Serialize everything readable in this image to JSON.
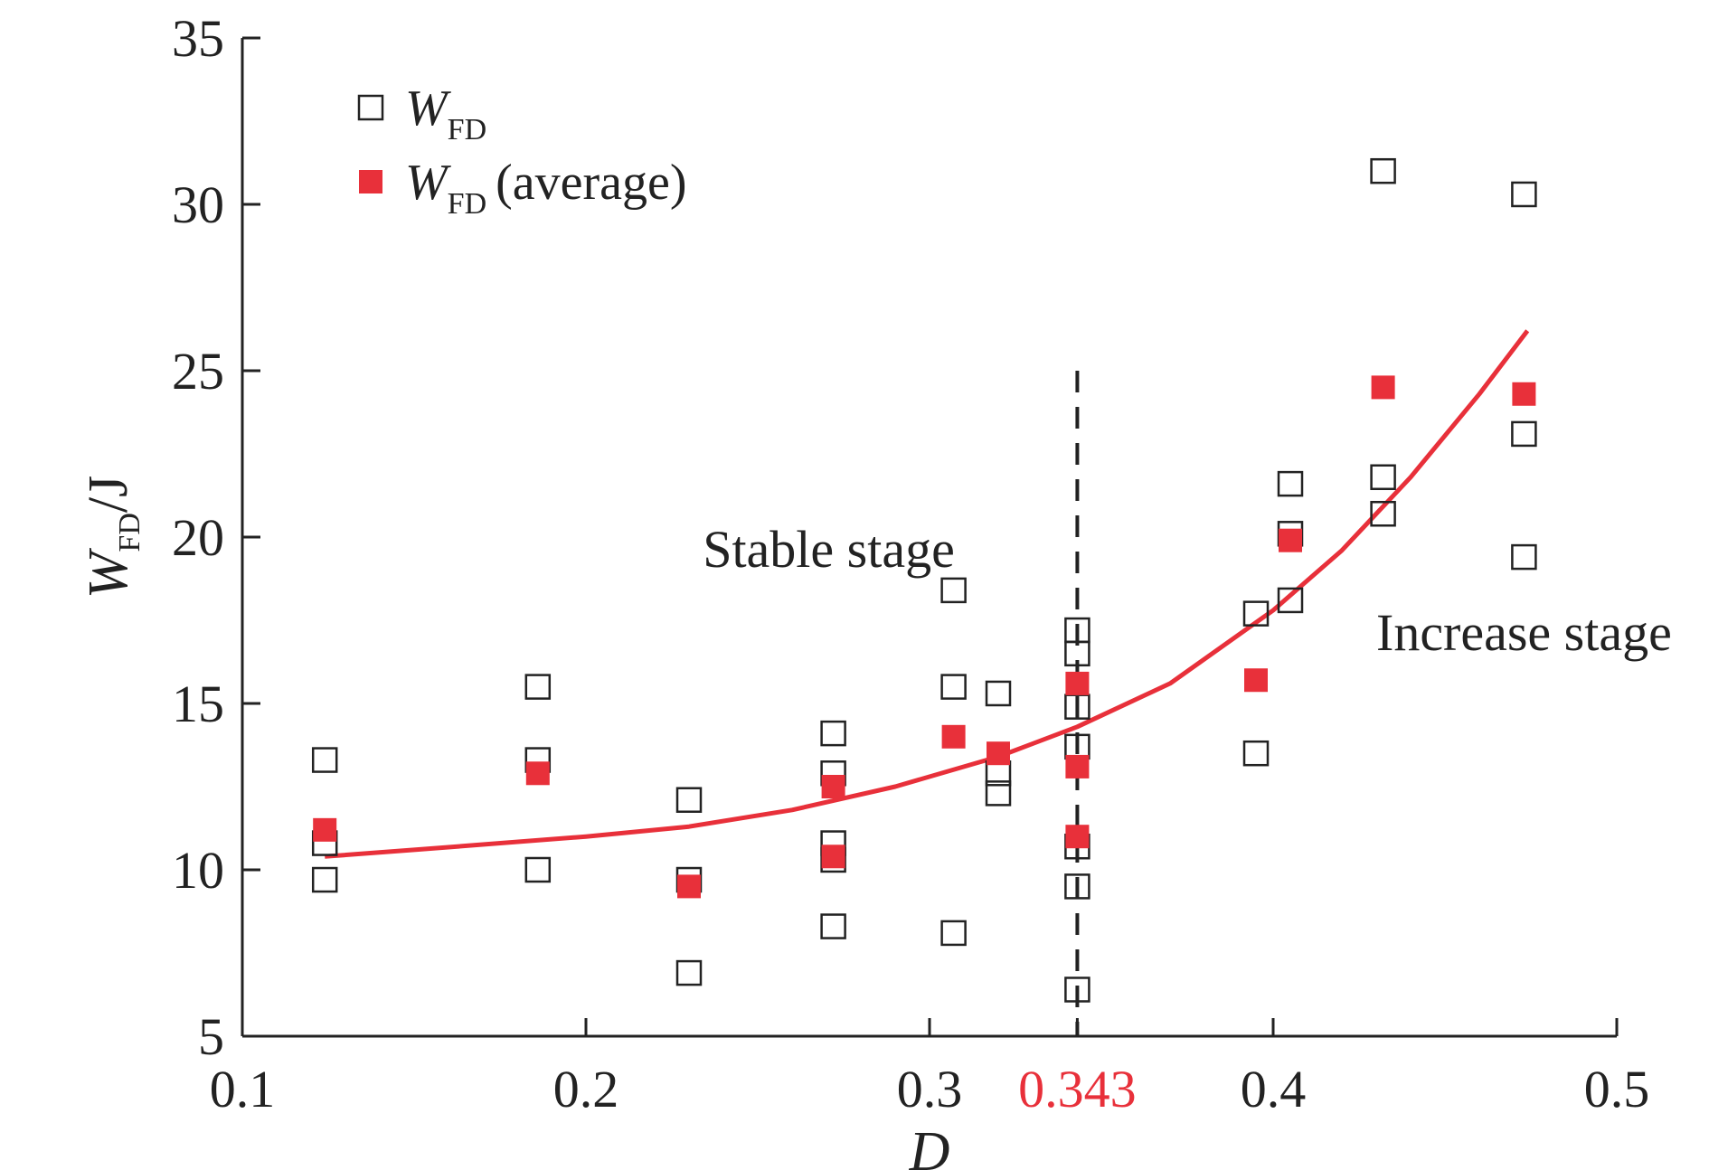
{
  "chart_data": {
    "type": "scatter",
    "xlabel": "D",
    "ylabel": "W",
    "ylabel_sub": "FD",
    "ylabel_unit": "/J",
    "xlim": [
      0.1,
      0.5
    ],
    "ylim": [
      5,
      35
    ],
    "xticks": [
      0.1,
      0.2,
      0.3,
      0.4,
      0.5
    ],
    "yticks": [
      5,
      10,
      15,
      20,
      25,
      30,
      35
    ],
    "xtick_labels": [
      "0.1",
      "0.2",
      "0.3",
      "0.4",
      "0.5"
    ],
    "ytick_labels": [
      "5",
      "10",
      "15",
      "20",
      "25",
      "30",
      "35"
    ],
    "threshold": {
      "x": 0.343,
      "label": "0.343",
      "color": "#e8303a",
      "style": "dashed"
    },
    "annotations": [
      {
        "text": "Stable stage",
        "x": 0.234,
        "y": 19.1
      },
      {
        "text": "Increase stage",
        "x": 0.43,
        "y": 16.6
      }
    ],
    "legend": {
      "position": "top-left",
      "entries": [
        {
          "symbol": "W",
          "sub": "FD",
          "suffix": ""
        },
        {
          "symbol": "W",
          "sub": "FD",
          "suffix": "(average)"
        }
      ]
    },
    "series": [
      {
        "name": "W_FD",
        "marker": "open-square",
        "color": "#222222",
        "points": [
          [
            0.124,
            13.3
          ],
          [
            0.124,
            10.8
          ],
          [
            0.124,
            9.7
          ],
          [
            0.186,
            15.5
          ],
          [
            0.186,
            13.3
          ],
          [
            0.186,
            10.0
          ],
          [
            0.23,
            12.1
          ],
          [
            0.23,
            9.7
          ],
          [
            0.23,
            6.9
          ],
          [
            0.272,
            14.1
          ],
          [
            0.272,
            12.9
          ],
          [
            0.272,
            10.8
          ],
          [
            0.272,
            10.3
          ],
          [
            0.272,
            8.3
          ],
          [
            0.307,
            18.4
          ],
          [
            0.307,
            15.5
          ],
          [
            0.307,
            8.1
          ],
          [
            0.32,
            15.3
          ],
          [
            0.32,
            12.9
          ],
          [
            0.32,
            12.3
          ],
          [
            0.343,
            17.2
          ],
          [
            0.343,
            16.5
          ],
          [
            0.343,
            14.9
          ],
          [
            0.343,
            13.7
          ],
          [
            0.343,
            10.7
          ],
          [
            0.343,
            9.5
          ],
          [
            0.343,
            6.4
          ],
          [
            0.395,
            17.7
          ],
          [
            0.395,
            13.5
          ],
          [
            0.405,
            21.6
          ],
          [
            0.405,
            20.1
          ],
          [
            0.405,
            18.1
          ],
          [
            0.432,
            31.0
          ],
          [
            0.432,
            21.8
          ],
          [
            0.432,
            20.7
          ],
          [
            0.473,
            30.3
          ],
          [
            0.473,
            23.1
          ],
          [
            0.473,
            19.4
          ]
        ]
      },
      {
        "name": "W_FD (average)",
        "marker": "filled-square",
        "color": "#e8303a",
        "points": [
          [
            0.124,
            11.2
          ],
          [
            0.186,
            12.9
          ],
          [
            0.23,
            9.5
          ],
          [
            0.272,
            12.5
          ],
          [
            0.272,
            10.4
          ],
          [
            0.307,
            14.0
          ],
          [
            0.32,
            13.5
          ],
          [
            0.343,
            15.6
          ],
          [
            0.343,
            13.1
          ],
          [
            0.343,
            11.0
          ],
          [
            0.395,
            15.7
          ],
          [
            0.405,
            19.9
          ],
          [
            0.432,
            24.5
          ],
          [
            0.473,
            24.3
          ]
        ]
      }
    ],
    "fit_curve": {
      "color": "#e8303a",
      "points": [
        [
          0.124,
          10.4
        ],
        [
          0.15,
          10.6
        ],
        [
          0.2,
          11.0
        ],
        [
          0.23,
          11.3
        ],
        [
          0.26,
          11.8
        ],
        [
          0.29,
          12.5
        ],
        [
          0.32,
          13.4
        ],
        [
          0.343,
          14.3
        ],
        [
          0.37,
          15.6
        ],
        [
          0.4,
          17.8
        ],
        [
          0.42,
          19.6
        ],
        [
          0.44,
          21.8
        ],
        [
          0.46,
          24.3
        ],
        [
          0.474,
          26.2
        ]
      ]
    }
  }
}
